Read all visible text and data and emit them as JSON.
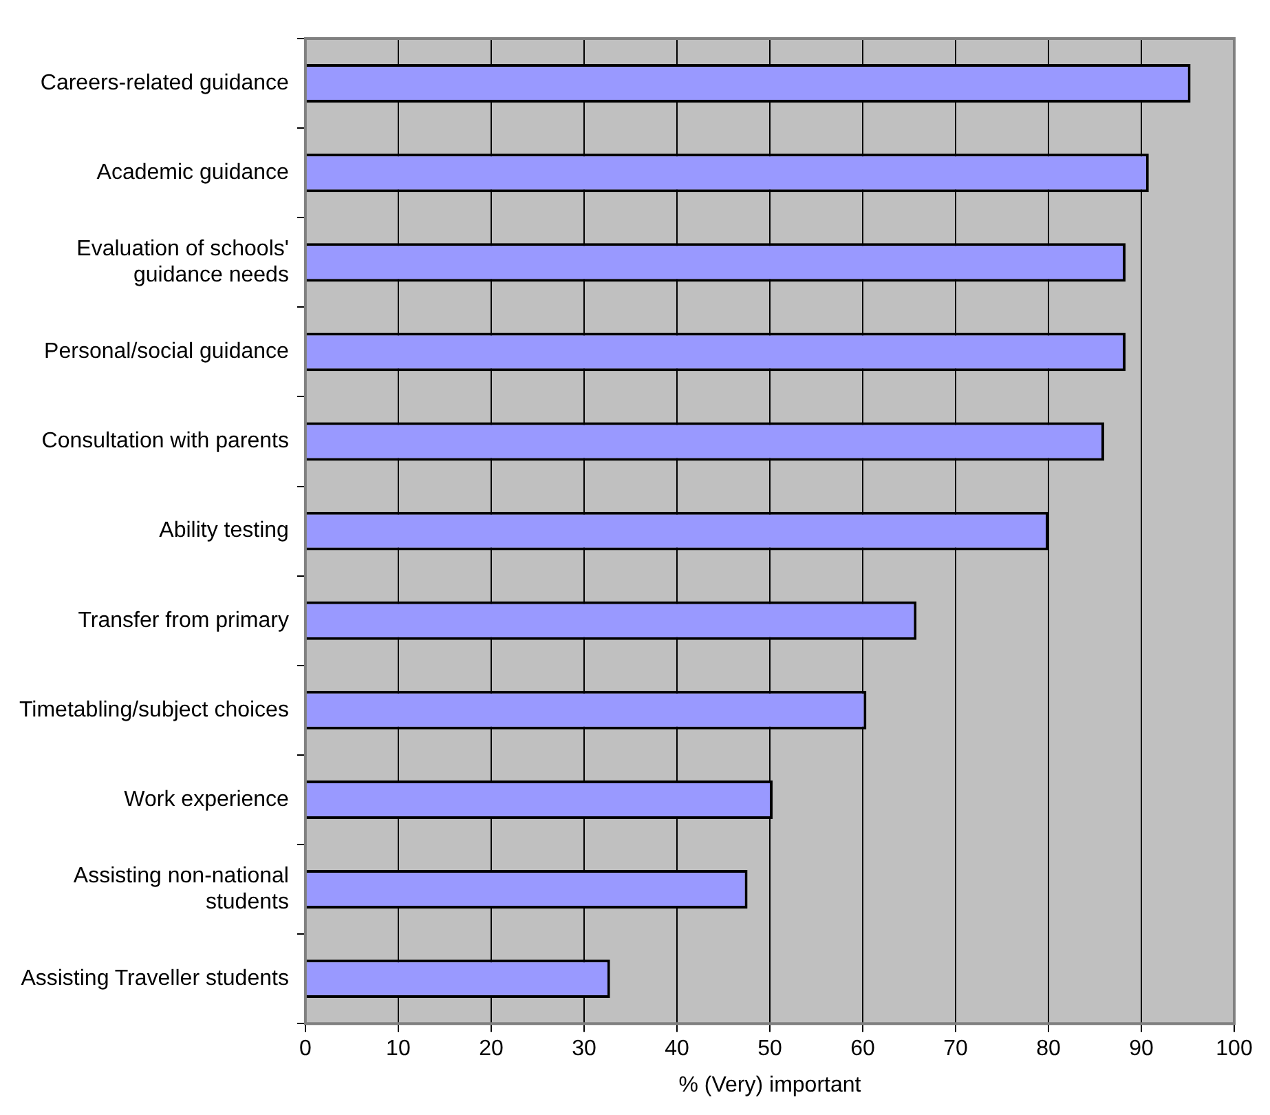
{
  "chart_data": {
    "type": "bar",
    "orientation": "horizontal",
    "xlabel": "% (Very) important",
    "categories": [
      "Careers-related guidance",
      "Academic guidance",
      "Evaluation of schools' guidance needs",
      "Personal/social guidance",
      "Consultation with parents",
      "Ability testing",
      "Transfer from primary",
      "Timetabling/subject choices",
      "Work experience",
      "Assisting non-national students",
      "Assisting Traveller students"
    ],
    "values": [
      95.3,
      90.8,
      88.3,
      88.3,
      86.0,
      80.0,
      65.8,
      60.4,
      50.3,
      47.6,
      32.8
    ],
    "color": "#9999ff",
    "xlim": [
      0,
      100
    ],
    "xticks": [
      0,
      10,
      20,
      30,
      40,
      50,
      60,
      70,
      80,
      90,
      100
    ],
    "grid": "x"
  }
}
